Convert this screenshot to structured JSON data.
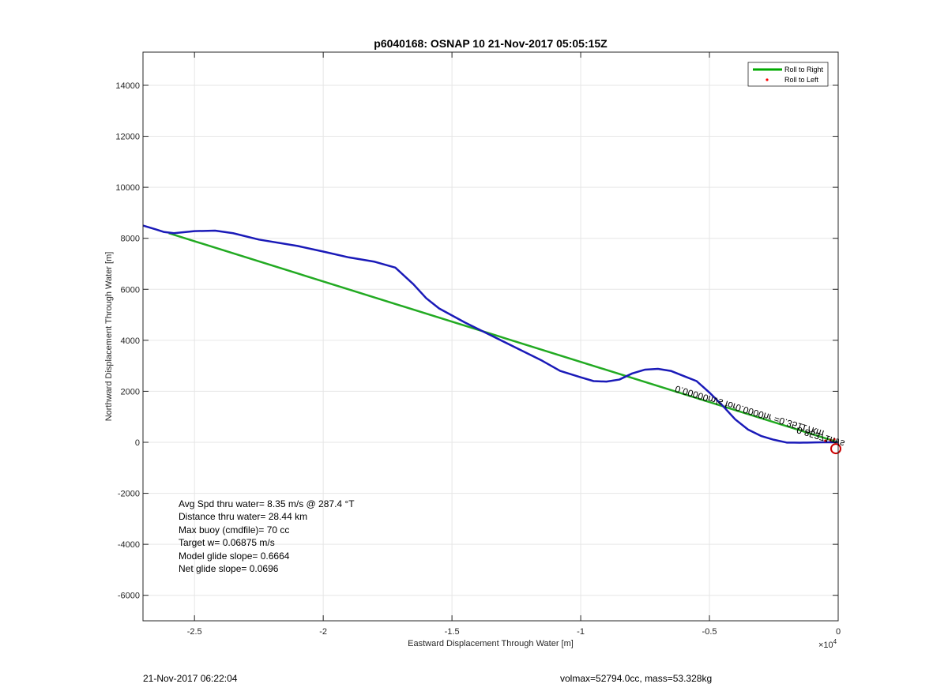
{
  "chart_data": {
    "type": "line",
    "title": "p6040168: OSNAP 10 21-Nov-2017 05:05:15Z",
    "xlabel": "Eastward Displacement Through Water [m]",
    "ylabel": "Northward Displacement Through Water [m]",
    "x_exponent_label": "×10",
    "x_exponent_power": "4",
    "xlim": [
      -27000,
      0
    ],
    "ylim": [
      -7000,
      15300
    ],
    "x_scale_factor": 10000,
    "xticks": [
      -2.5,
      -2,
      -1.5,
      -1,
      -0.5,
      0
    ],
    "xtick_labels": [
      "-2.5",
      "-2",
      "-1.5",
      "-1",
      "-0.5",
      "0"
    ],
    "yticks": [
      -6000,
      -4000,
      -2000,
      0,
      2000,
      4000,
      6000,
      8000,
      10000,
      12000,
      14000
    ],
    "ytick_labels": [
      "-6000",
      "-4000",
      "-2000",
      "0",
      "2000",
      "4000",
      "6000",
      "8000",
      "10000",
      "12000",
      "14000"
    ],
    "grid": true,
    "legend_position": "top-right",
    "legend": [
      {
        "name": "Roll to Right",
        "color": "#00aa00",
        "style": "line"
      },
      {
        "name": "Roll to Left",
        "color": "#ff0000",
        "style": "dot"
      }
    ],
    "series": [
      {
        "name": "Roll to Right",
        "color": "#22aa22",
        "x": [
          -26000,
          0
        ],
        "y": [
          8200,
          0
        ]
      },
      {
        "name": "",
        "color": "#1a1ab8",
        "x": [
          -27000,
          -26500,
          -26200,
          -25800,
          -25000,
          -24200,
          -23500,
          -22500,
          -21000,
          -20000,
          -19000,
          -18000,
          -17200,
          -16500,
          -16000,
          -15500,
          -14500,
          -13500,
          -12500,
          -11500,
          -10800,
          -10000,
          -9500,
          -9000,
          -8500,
          -8000,
          -7500,
          -7000,
          -6500,
          -6000,
          -5500,
          -5000,
          -4500,
          -4000,
          -3500,
          -3000,
          -2500,
          -2000,
          -1700,
          -1500,
          -1200,
          -900,
          -600,
          -300,
          0
        ],
        "y": [
          8500,
          8350,
          8250,
          8200,
          8280,
          8300,
          8200,
          7950,
          7700,
          7480,
          7250,
          7080,
          6850,
          6200,
          5650,
          5250,
          4700,
          4200,
          3700,
          3200,
          2800,
          2550,
          2400,
          2380,
          2460,
          2700,
          2850,
          2880,
          2800,
          2600,
          2400,
          1950,
          1450,
          900,
          500,
          250,
          100,
          -10,
          -10,
          -15,
          -10,
          -5,
          0,
          0,
          0
        ]
      }
    ],
    "annotations": {
      "rotated_text": "0.00000m/s for0.0000hr =0.35117km",
      "rotated_overlap": "0.85371m/s",
      "stats": [
        "Avg Spd thru water=  8.35 m/s @ 287.4 °T",
        "Distance thru water= 28.44 km",
        "Max buoy (cmdfile)= 70 cc",
        "Target w= 0.06875 m/s",
        "Model glide slope= 0.6664",
        "Net glide slope= 0.0696"
      ]
    },
    "end_marker": {
      "x": 0,
      "y": -250,
      "color": "#cc0000"
    }
  },
  "footer": {
    "timestamp": "21-Nov-2017 06:22:04",
    "volume_mass": "volmax=52794.0cc, mass=53.328kg"
  }
}
